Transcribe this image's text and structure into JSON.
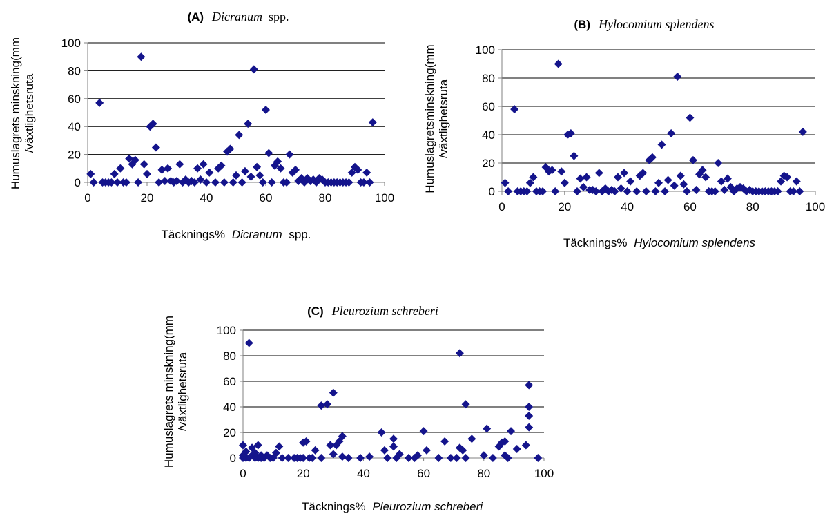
{
  "chart_data": [
    {
      "type": "scatter",
      "title_letter": "(A)",
      "title_name": "Dicranum",
      "title_suffix": "spp.",
      "xlabel_prefix": "Täcknings%",
      "xlabel_name": "Dicranum",
      "xlabel_suffix": "spp.",
      "ylabel_line1": "Humuslagrets minskning(mm",
      "ylabel_line2": "/växtlighetsruta",
      "xlim": [
        0,
        100
      ],
      "ylim": [
        0,
        100
      ],
      "xticks": [
        0,
        20,
        40,
        60,
        80,
        100
      ],
      "yticks": [
        0,
        20,
        40,
        60,
        80,
        100
      ],
      "grid": "horizontal",
      "marker_color": "#14148C",
      "points": [
        [
          1,
          6
        ],
        [
          2,
          0
        ],
        [
          4,
          57
        ],
        [
          5,
          0
        ],
        [
          6,
          0
        ],
        [
          7,
          0
        ],
        [
          8,
          0
        ],
        [
          9,
          6
        ],
        [
          10,
          0
        ],
        [
          11,
          10
        ],
        [
          12,
          0
        ],
        [
          13,
          0
        ],
        [
          14,
          17
        ],
        [
          15,
          13
        ],
        [
          16,
          16
        ],
        [
          17,
          0
        ],
        [
          18,
          90
        ],
        [
          19,
          13
        ],
        [
          20,
          6
        ],
        [
          21,
          40
        ],
        [
          22,
          42
        ],
        [
          23,
          25
        ],
        [
          24,
          0
        ],
        [
          25,
          9
        ],
        [
          26,
          1
        ],
        [
          27,
          10
        ],
        [
          28,
          1
        ],
        [
          29,
          0
        ],
        [
          30,
          1
        ],
        [
          31,
          13
        ],
        [
          32,
          0
        ],
        [
          33,
          2
        ],
        [
          34,
          0
        ],
        [
          35,
          1
        ],
        [
          36,
          0
        ],
        [
          37,
          10
        ],
        [
          38,
          2
        ],
        [
          39,
          13
        ],
        [
          40,
          0
        ],
        [
          41,
          7
        ],
        [
          43,
          0
        ],
        [
          44,
          10
        ],
        [
          45,
          12
        ],
        [
          46,
          0
        ],
        [
          47,
          22
        ],
        [
          48,
          24
        ],
        [
          49,
          0
        ],
        [
          50,
          5
        ],
        [
          51,
          34
        ],
        [
          52,
          0
        ],
        [
          53,
          8
        ],
        [
          54,
          42
        ],
        [
          55,
          4
        ],
        [
          56,
          81
        ],
        [
          57,
          11
        ],
        [
          58,
          5
        ],
        [
          59,
          0
        ],
        [
          60,
          52
        ],
        [
          61,
          21
        ],
        [
          62,
          0
        ],
        [
          63,
          12
        ],
        [
          64,
          15
        ],
        [
          65,
          10
        ],
        [
          66,
          0
        ],
        [
          67,
          0
        ],
        [
          68,
          20
        ],
        [
          69,
          7
        ],
        [
          70,
          9
        ],
        [
          71,
          1
        ],
        [
          72,
          3
        ],
        [
          73,
          0
        ],
        [
          74,
          3
        ],
        [
          75,
          1
        ],
        [
          76,
          2
        ],
        [
          77,
          0
        ],
        [
          78,
          3
        ],
        [
          79,
          2
        ],
        [
          80,
          0
        ],
        [
          81,
          0
        ],
        [
          82,
          0
        ],
        [
          83,
          0
        ],
        [
          84,
          0
        ],
        [
          85,
          0
        ],
        [
          86,
          0
        ],
        [
          87,
          0
        ],
        [
          88,
          0
        ],
        [
          89,
          7
        ],
        [
          90,
          11
        ],
        [
          91,
          9
        ],
        [
          92,
          0
        ],
        [
          93,
          0
        ],
        [
          94,
          7
        ],
        [
          95,
          0
        ],
        [
          96,
          43
        ]
      ]
    },
    {
      "type": "scatter",
      "title_letter": "(B)",
      "title_name": "Hylocomium splendens",
      "title_suffix": "",
      "xlabel_prefix": "Täcknings%",
      "xlabel_name": "Hylocomium splendens",
      "xlabel_suffix": "",
      "ylabel_line1": "Humuslagretsminskning(mm",
      "ylabel_line2": "/växtlighetsruta",
      "xlim": [
        0,
        100
      ],
      "ylim": [
        0,
        100
      ],
      "xticks": [
        0,
        20,
        40,
        60,
        80,
        100
      ],
      "yticks": [
        0,
        20,
        40,
        60,
        80,
        100
      ],
      "grid": "horizontal",
      "marker_color": "#14148C",
      "points": [
        [
          1,
          6
        ],
        [
          2,
          0
        ],
        [
          4,
          58
        ],
        [
          5,
          0
        ],
        [
          6,
          0
        ],
        [
          7,
          0
        ],
        [
          8,
          0
        ],
        [
          9,
          6
        ],
        [
          10,
          10
        ],
        [
          11,
          0
        ],
        [
          12,
          0
        ],
        [
          13,
          0
        ],
        [
          14,
          17
        ],
        [
          15,
          14
        ],
        [
          16,
          15
        ],
        [
          17,
          0
        ],
        [
          18,
          90
        ],
        [
          19,
          14
        ],
        [
          20,
          6
        ],
        [
          21,
          40
        ],
        [
          22,
          41
        ],
        [
          23,
          25
        ],
        [
          24,
          0
        ],
        [
          25,
          9
        ],
        [
          26,
          3
        ],
        [
          27,
          10
        ],
        [
          28,
          1
        ],
        [
          29,
          1
        ],
        [
          30,
          0
        ],
        [
          31,
          13
        ],
        [
          32,
          0
        ],
        [
          33,
          2
        ],
        [
          34,
          0
        ],
        [
          35,
          1
        ],
        [
          36,
          0
        ],
        [
          37,
          10
        ],
        [
          38,
          2
        ],
        [
          39,
          13
        ],
        [
          40,
          0
        ],
        [
          41,
          7
        ],
        [
          43,
          0
        ],
        [
          44,
          11
        ],
        [
          45,
          13
        ],
        [
          46,
          0
        ],
        [
          47,
          22
        ],
        [
          48,
          24
        ],
        [
          49,
          0
        ],
        [
          50,
          6
        ],
        [
          51,
          33
        ],
        [
          52,
          0
        ],
        [
          53,
          8
        ],
        [
          54,
          41
        ],
        [
          55,
          4
        ],
        [
          56,
          81
        ],
        [
          57,
          11
        ],
        [
          58,
          5
        ],
        [
          59,
          0
        ],
        [
          60,
          52
        ],
        [
          61,
          22
        ],
        [
          62,
          1
        ],
        [
          63,
          12
        ],
        [
          64,
          15
        ],
        [
          65,
          10
        ],
        [
          66,
          0
        ],
        [
          67,
          0
        ],
        [
          68,
          0
        ],
        [
          69,
          20
        ],
        [
          70,
          7
        ],
        [
          71,
          1
        ],
        [
          72,
          9
        ],
        [
          73,
          3
        ],
        [
          74,
          0
        ],
        [
          75,
          2
        ],
        [
          76,
          3
        ],
        [
          77,
          2
        ],
        [
          78,
          0
        ],
        [
          79,
          1
        ],
        [
          80,
          0
        ],
        [
          81,
          0
        ],
        [
          82,
          0
        ],
        [
          83,
          0
        ],
        [
          84,
          0
        ],
        [
          85,
          0
        ],
        [
          86,
          0
        ],
        [
          87,
          0
        ],
        [
          88,
          0
        ],
        [
          89,
          7
        ],
        [
          90,
          11
        ],
        [
          91,
          10
        ],
        [
          92,
          0
        ],
        [
          93,
          0
        ],
        [
          94,
          7
        ],
        [
          95,
          0
        ],
        [
          96,
          42
        ]
      ]
    },
    {
      "type": "scatter",
      "title_letter": "(C)",
      "title_name": "Pleurozium schreberi",
      "title_suffix": "",
      "xlabel_prefix": "Täcknings%",
      "xlabel_name": "Pleurozium schreberi",
      "xlabel_suffix": "",
      "ylabel_line1": "Humuslagrets minskning(mm",
      "ylabel_line2": "/växtlighetsruta",
      "xlim": [
        0,
        100
      ],
      "ylim": [
        0,
        100
      ],
      "xticks": [
        0,
        20,
        40,
        60,
        80,
        100
      ],
      "yticks": [
        0,
        20,
        40,
        60,
        80,
        100
      ],
      "grid": "horizontal",
      "marker_color": "#14148C",
      "points": [
        [
          0,
          10
        ],
        [
          0,
          0
        ],
        [
          0,
          2
        ],
        [
          1,
          5
        ],
        [
          1,
          0
        ],
        [
          2,
          90
        ],
        [
          2,
          0
        ],
        [
          3,
          8
        ],
        [
          3,
          2
        ],
        [
          4,
          0
        ],
        [
          4,
          4
        ],
        [
          5,
          10
        ],
        [
          5,
          0
        ],
        [
          6,
          2
        ],
        [
          6,
          0
        ],
        [
          7,
          0
        ],
        [
          8,
          2
        ],
        [
          9,
          0
        ],
        [
          10,
          0
        ],
        [
          11,
          4
        ],
        [
          12,
          9
        ],
        [
          13,
          0
        ],
        [
          15,
          0
        ],
        [
          17,
          0
        ],
        [
          18,
          0
        ],
        [
          19,
          0
        ],
        [
          20,
          0
        ],
        [
          20,
          12
        ],
        [
          21,
          13
        ],
        [
          22,
          0
        ],
        [
          23,
          0
        ],
        [
          24,
          6
        ],
        [
          26,
          41
        ],
        [
          26,
          0
        ],
        [
          28,
          42
        ],
        [
          29,
          10
        ],
        [
          30,
          51
        ],
        [
          30,
          3
        ],
        [
          31,
          10
        ],
        [
          32,
          13
        ],
        [
          33,
          17
        ],
        [
          33,
          1
        ],
        [
          35,
          0
        ],
        [
          39,
          0
        ],
        [
          42,
          1
        ],
        [
          46,
          20
        ],
        [
          47,
          6
        ],
        [
          48,
          0
        ],
        [
          50,
          15
        ],
        [
          50,
          9
        ],
        [
          51,
          0
        ],
        [
          52,
          3
        ],
        [
          55,
          0
        ],
        [
          57,
          0
        ],
        [
          58,
          2
        ],
        [
          60,
          21
        ],
        [
          61,
          6
        ],
        [
          65,
          0
        ],
        [
          67,
          13
        ],
        [
          69,
          0
        ],
        [
          71,
          0
        ],
        [
          72,
          82
        ],
        [
          72,
          8
        ],
        [
          73,
          6
        ],
        [
          74,
          42
        ],
        [
          74,
          0
        ],
        [
          76,
          15
        ],
        [
          80,
          2
        ],
        [
          81,
          23
        ],
        [
          83,
          0
        ],
        [
          85,
          9
        ],
        [
          86,
          12
        ],
        [
          87,
          13
        ],
        [
          87,
          2
        ],
        [
          88,
          0
        ],
        [
          89,
          21
        ],
        [
          91,
          7
        ],
        [
          94,
          10
        ],
        [
          95,
          57
        ],
        [
          95,
          40
        ],
        [
          95,
          33
        ],
        [
          95,
          24
        ],
        [
          98,
          0
        ]
      ]
    }
  ]
}
